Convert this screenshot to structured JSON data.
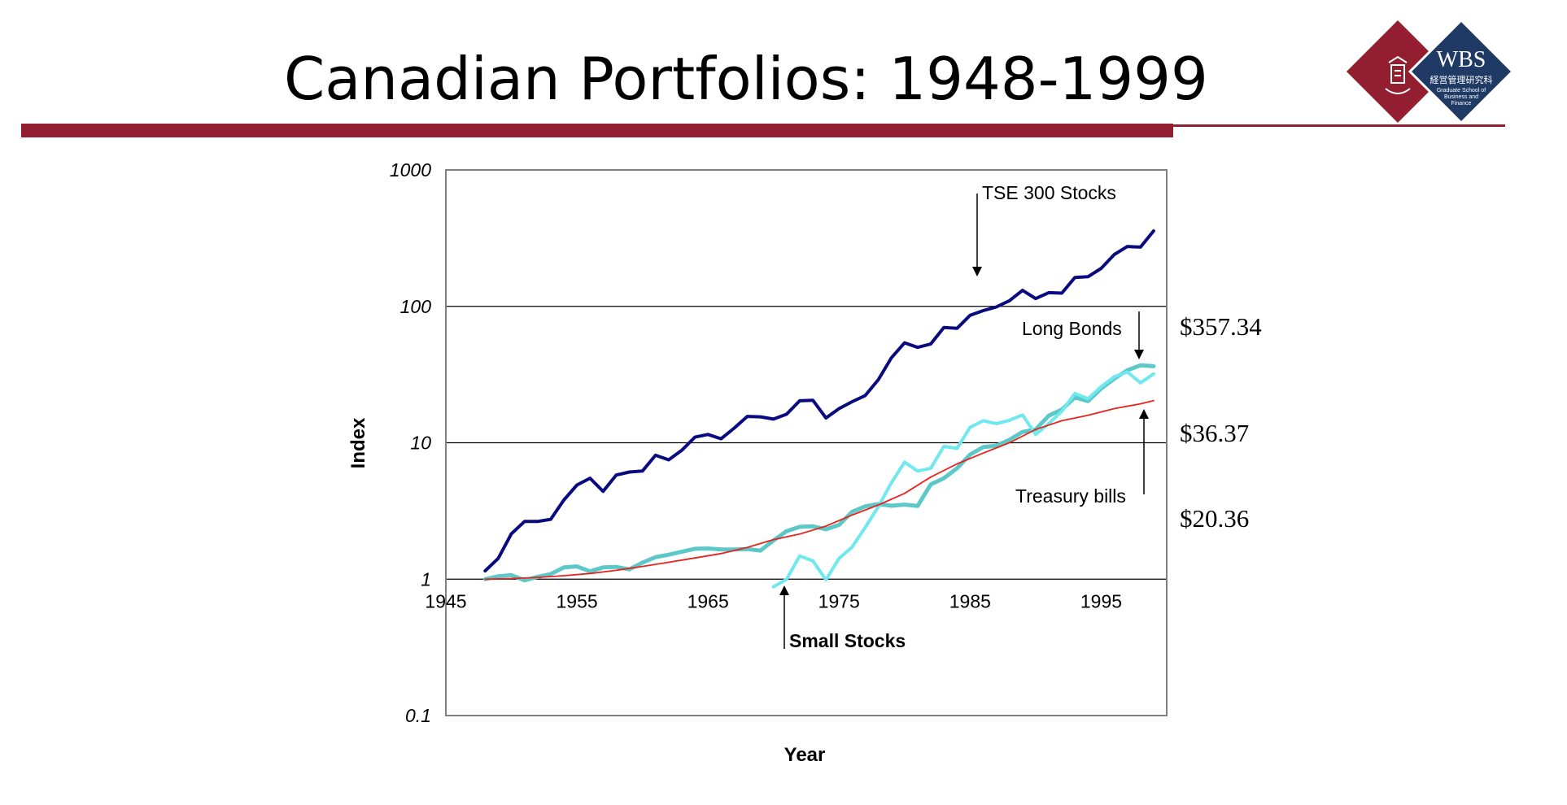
{
  "slide": {
    "title": "Canadian Portfolios: 1948-1999"
  },
  "logo": {
    "name": "WBS",
    "subtitle": "経営管理研究科",
    "tagline_1": "Graduate School of",
    "tagline_2": "Business and",
    "tagline_3": "Finance"
  },
  "values": {
    "stocks": "$357.34",
    "bonds": "$36.37",
    "bills": "$20.36"
  },
  "colors": {
    "accent": "#931e30",
    "tse": "#0a0a80",
    "bonds": "#5cc8c8",
    "small": "#6fe8f0",
    "bills": "#e8231e",
    "navy": "#1f3a64"
  },
  "chart_data": {
    "type": "line",
    "scale": "log",
    "xlabel": "Year",
    "ylabel": "Index",
    "xlim": [
      1945,
      2000
    ],
    "ylim": [
      0.1,
      1000
    ],
    "x_ticks": [
      "1945",
      "1955",
      "1965",
      "1975",
      "1985",
      "1995"
    ],
    "x_tick_values": [
      1945,
      1955,
      1965,
      1975,
      1985,
      1995
    ],
    "y_ticks": [
      "1000",
      "100",
      "10",
      "1",
      "0.1"
    ],
    "y_tick_values": [
      1000,
      100,
      10,
      1,
      0.1
    ],
    "gridlines": [
      100,
      10,
      1
    ],
    "annotations": {
      "tse": "TSE 300 Stocks",
      "bonds": "Long Bonds",
      "bills": "Treasury bills",
      "small": "Small Stocks"
    },
    "series": [
      {
        "name": "TSE 300 Stocks",
        "key": "tse",
        "x": [
          1948,
          1949,
          1950,
          1951,
          1952,
          1953,
          1954,
          1955,
          1956,
          1957,
          1958,
          1959,
          1960,
          1961,
          1962,
          1963,
          1964,
          1965,
          1966,
          1967,
          1968,
          1969,
          1970,
          1971,
          1972,
          1973,
          1974,
          1975,
          1976,
          1977,
          1978,
          1979,
          1980,
          1981,
          1982,
          1983,
          1984,
          1985,
          1986,
          1987,
          1988,
          1989,
          1990,
          1991,
          1992,
          1993,
          1994,
          1995,
          1996,
          1997,
          1998,
          1999
        ],
        "values": [
          1.15,
          1.42,
          2.15,
          2.65,
          2.65,
          2.75,
          3.8,
          4.9,
          5.5,
          4.4,
          5.8,
          6.1,
          6.2,
          8.1,
          7.5,
          8.8,
          11,
          11.5,
          10.7,
          12.8,
          15.6,
          15.5,
          14.9,
          16.2,
          20.3,
          20.5,
          15.2,
          17.8,
          20.0,
          22.2,
          29,
          42,
          54,
          50,
          53,
          70,
          69,
          86,
          93,
          99,
          110,
          131,
          114,
          126,
          125,
          163,
          165,
          190,
          240,
          275,
          272,
          357.34
        ]
      },
      {
        "name": "Long Bonds",
        "key": "bonds",
        "x": [
          1948,
          1949,
          1950,
          1951,
          1952,
          1953,
          1954,
          1955,
          1956,
          1957,
          1958,
          1959,
          1960,
          1961,
          1962,
          1963,
          1964,
          1965,
          1966,
          1967,
          1968,
          1969,
          1970,
          1971,
          1972,
          1973,
          1974,
          1975,
          1976,
          1977,
          1978,
          1979,
          1980,
          1981,
          1982,
          1983,
          1984,
          1985,
          1986,
          1987,
          1988,
          1989,
          1990,
          1991,
          1992,
          1993,
          1994,
          1995,
          1996,
          1997,
          1998,
          1999
        ],
        "values": [
          1.0,
          1.05,
          1.07,
          0.98,
          1.04,
          1.09,
          1.22,
          1.24,
          1.14,
          1.22,
          1.23,
          1.18,
          1.32,
          1.45,
          1.51,
          1.59,
          1.67,
          1.68,
          1.65,
          1.65,
          1.66,
          1.62,
          1.92,
          2.25,
          2.42,
          2.44,
          2.32,
          2.5,
          3.12,
          3.42,
          3.55,
          3.45,
          3.52,
          3.44,
          4.95,
          5.5,
          6.5,
          8.2,
          9.3,
          9.5,
          10.5,
          12.0,
          12.5,
          15.8,
          17.5,
          21.5,
          20.2,
          25,
          29.5,
          34,
          37,
          36.37
        ]
      },
      {
        "name": "Small Stocks",
        "key": "small",
        "x": [
          1970,
          1971,
          1972,
          1973,
          1974,
          1975,
          1976,
          1977,
          1978,
          1979,
          1980,
          1981,
          1982,
          1983,
          1984,
          1985,
          1986,
          1987,
          1988,
          1989,
          1990,
          1991,
          1992,
          1993,
          1994,
          1995,
          1996,
          1997,
          1998,
          1999
        ],
        "values": [
          0.88,
          1.0,
          1.48,
          1.36,
          0.99,
          1.42,
          1.72,
          2.4,
          3.4,
          5.1,
          7.2,
          6.2,
          6.5,
          9.4,
          9.1,
          13,
          14.5,
          13.8,
          14.6,
          16,
          11.5,
          13.8,
          17,
          23,
          21,
          25.8,
          30.5,
          33,
          27.5,
          32
        ]
      },
      {
        "name": "Treasury bills",
        "key": "bills",
        "x": [
          1948,
          1950,
          1952,
          1954,
          1956,
          1958,
          1960,
          1962,
          1964,
          1966,
          1968,
          1970,
          1972,
          1974,
          1976,
          1978,
          1980,
          1982,
          1984,
          1986,
          1988,
          1990,
          1992,
          1994,
          1996,
          1998,
          1999
        ],
        "values": [
          1.0,
          1.01,
          1.03,
          1.06,
          1.1,
          1.16,
          1.24,
          1.33,
          1.43,
          1.54,
          1.71,
          1.95,
          2.14,
          2.45,
          2.95,
          3.5,
          4.25,
          5.6,
          7.0,
          8.4,
          10,
          12.5,
          14.5,
          15.9,
          17.8,
          19.3,
          20.36
        ]
      }
    ]
  }
}
